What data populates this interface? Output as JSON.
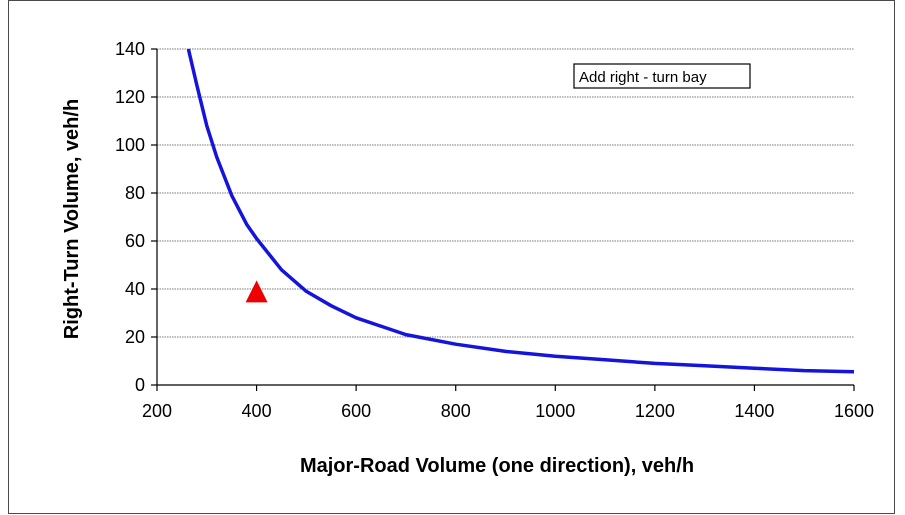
{
  "chart_data": {
    "type": "line",
    "title": "",
    "xlabel": "Major-Road Volume (one direction), veh/h",
    "ylabel": "Right-Turn Volume, veh/h",
    "xlim": [
      200,
      1600
    ],
    "ylim": [
      0,
      140
    ],
    "x_ticks": [
      200,
      400,
      600,
      800,
      1000,
      1200,
      1400,
      1600
    ],
    "y_ticks": [
      0,
      20,
      40,
      60,
      80,
      100,
      120,
      140
    ],
    "grid": "horizontal",
    "annotation": {
      "text": "Add right - turn bay",
      "placement": "top-right"
    },
    "series": [
      {
        "type": "line",
        "color": "#1414dc",
        "x": [
          263,
          280,
          300,
          320,
          350,
          380,
          400,
          450,
          500,
          550,
          600,
          700,
          800,
          900,
          1000,
          1100,
          1200,
          1300,
          1400,
          1500,
          1600
        ],
        "values": [
          140,
          125,
          108,
          95,
          79,
          67,
          61,
          48,
          39,
          33,
          28,
          21,
          17,
          14,
          12,
          10.5,
          9,
          8,
          7,
          6,
          5.5
        ]
      },
      {
        "type": "scatter",
        "marker": "triangle",
        "color": "#ee0000",
        "x": [
          400
        ],
        "values": [
          39
        ]
      }
    ]
  }
}
